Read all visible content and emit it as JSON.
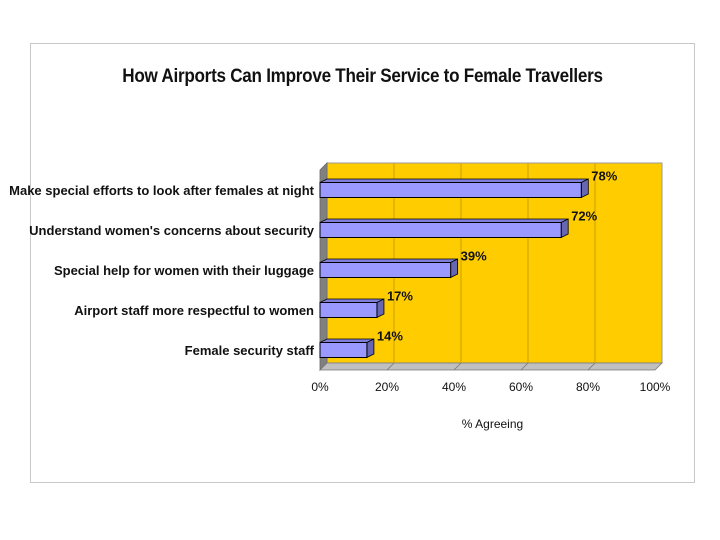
{
  "chart_data": {
    "type": "bar",
    "orientation": "horizontal",
    "title": "How Airports Can Improve Their Service to Female Travellers",
    "xlabel": "% Agreeing",
    "ylabel": "",
    "xlim": [
      0,
      100
    ],
    "x_ticks": [
      "0%",
      "20%",
      "40%",
      "60%",
      "80%",
      "100%"
    ],
    "categories": [
      "Make special efforts to look after females at night",
      "Understand women's concerns about security",
      "Special help for women with their luggage",
      "Airport staff more respectful to women",
      "Female security staff"
    ],
    "values": [
      78,
      72,
      39,
      17,
      14
    ],
    "data_labels": [
      "78%",
      "72%",
      "39%",
      "17%",
      "14%"
    ],
    "grid": true,
    "legend": "none",
    "colors": {
      "plot_background": "#ffcc00",
      "bar_fill": "#9999ff",
      "bar_edge": "#000000",
      "gridline": "#c8a000",
      "wall": "#808080"
    }
  }
}
